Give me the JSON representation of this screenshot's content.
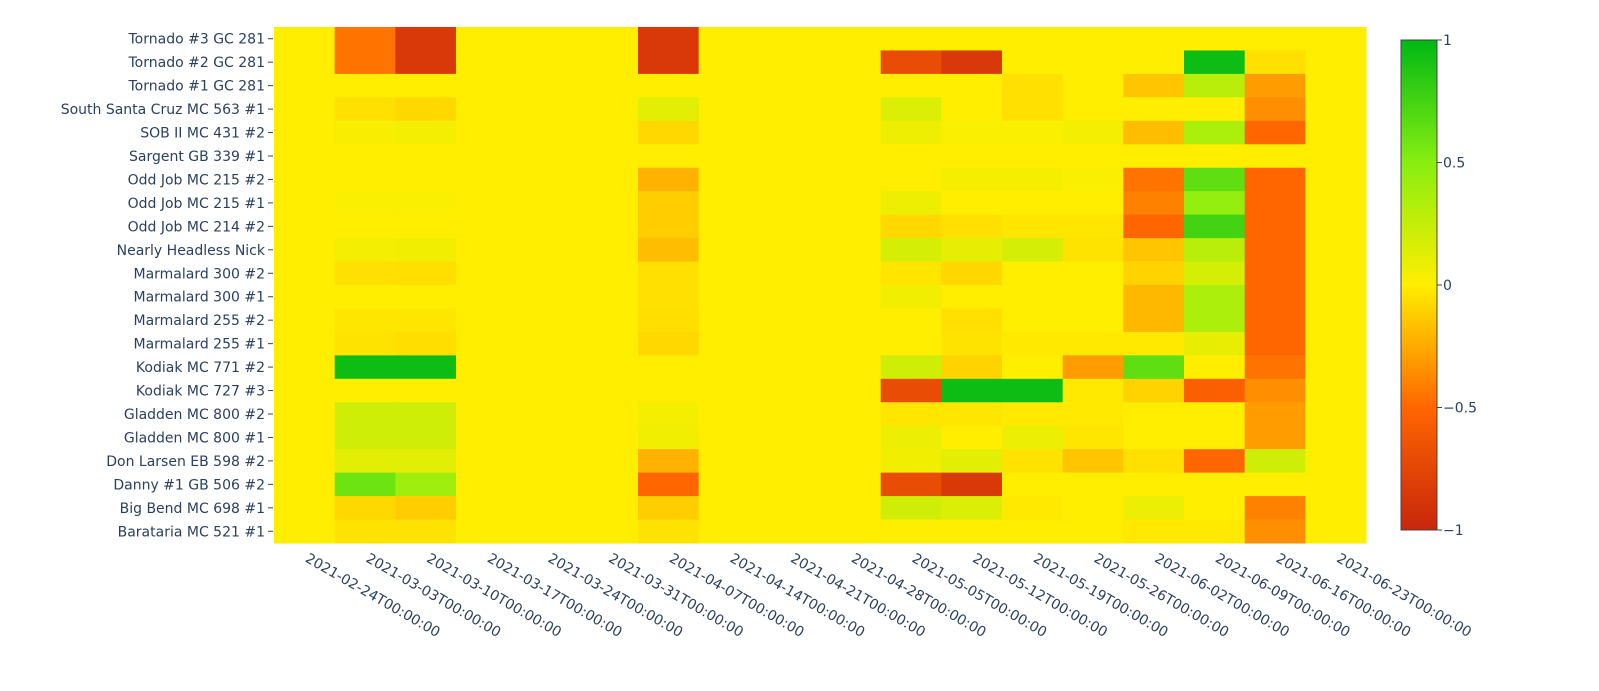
{
  "chart_data": {
    "type": "heatmap",
    "title": "",
    "xlabel": "",
    "ylabel": "",
    "x": [
      "2021-02-24T00:00:00",
      "2021-03-03T00:00:00",
      "2021-03-10T00:00:00",
      "2021-03-17T00:00:00",
      "2021-03-24T00:00:00",
      "2021-03-31T00:00:00",
      "2021-04-07T00:00:00",
      "2021-04-14T00:00:00",
      "2021-04-21T00:00:00",
      "2021-04-28T00:00:00",
      "2021-05-05T00:00:00",
      "2021-05-12T00:00:00",
      "2021-05-19T00:00:00",
      "2021-05-26T00:00:00",
      "2021-06-02T00:00:00",
      "2021-06-09T00:00:00",
      "2021-06-16T00:00:00",
      "2021-06-23T00:00:00"
    ],
    "y": [
      "Tornado #3 GC 281",
      "Tornado #2 GC 281",
      "Tornado #1 GC 281",
      "South Santa Cruz MC 563 #1",
      "SOB II MC 431 #2",
      "Sargent GB 339 #1",
      "Odd Job MC 215 #2",
      "Odd Job MC 215 #1",
      "Odd Job MC 214 #2",
      "Nearly Headless Nick",
      "Marmalard 300 #2",
      "Marmalard 300 #1",
      "Marmalard 255 #2",
      "Marmalard 255 #1",
      "Kodiak MC 771 #2",
      "Kodiak MC 727 #3",
      "Gladden MC 800 #2",
      "Gladden MC 800 #1",
      "Don Larsen EB 598 #2",
      "Danny #1 GB 506 #2",
      "Big Bend MC 698 #1",
      "Barataria MC 521 #1"
    ],
    "z": [
      [
        0,
        -0.45,
        -0.85,
        0,
        0,
        0,
        -0.85,
        0,
        0,
        0,
        0,
        0,
        0,
        0,
        0,
        0,
        0,
        0
      ],
      [
        0,
        -0.45,
        -0.85,
        0,
        0,
        0,
        -0.85,
        0,
        0,
        0,
        -0.7,
        -0.85,
        0,
        0,
        0,
        0.95,
        -0.05,
        0
      ],
      [
        0,
        0,
        0,
        0,
        0,
        0,
        0,
        0,
        0,
        0,
        0,
        0,
        -0.05,
        0,
        -0.15,
        0.3,
        -0.3,
        0
      ],
      [
        0,
        -0.05,
        -0.08,
        0,
        0,
        0,
        0.12,
        0,
        0,
        0,
        0.15,
        0,
        -0.05,
        0,
        0,
        0,
        -0.35,
        0
      ],
      [
        0,
        0.03,
        0.05,
        0,
        0,
        0,
        -0.08,
        0,
        0,
        0,
        0.07,
        0.02,
        0.02,
        0.05,
        -0.18,
        0.35,
        -0.5,
        0
      ],
      [
        0,
        0,
        0,
        0,
        0,
        0,
        0,
        0,
        0,
        0,
        0,
        0,
        0,
        0,
        0,
        0,
        0,
        0
      ],
      [
        0,
        0,
        0,
        0,
        0,
        0,
        -0.22,
        0,
        0,
        0,
        0,
        0.04,
        0.04,
        0.02,
        -0.45,
        0.65,
        -0.5,
        0
      ],
      [
        0,
        0.02,
        0.02,
        0,
        0,
        0,
        -0.12,
        0,
        0,
        0,
        0.07,
        0,
        0,
        0,
        -0.4,
        0.45,
        -0.5,
        0
      ],
      [
        0,
        0,
        0,
        0,
        0,
        0,
        -0.12,
        0,
        0,
        0,
        -0.08,
        -0.05,
        -0.03,
        -0.03,
        -0.5,
        0.75,
        -0.5,
        0
      ],
      [
        0,
        0.05,
        0.06,
        0,
        0,
        0,
        -0.18,
        0,
        0,
        0,
        0.18,
        0.1,
        0.18,
        -0.04,
        -0.15,
        0.3,
        -0.5,
        0
      ],
      [
        0,
        -0.05,
        -0.06,
        0,
        0,
        0,
        -0.05,
        0,
        0,
        0,
        -0.03,
        -0.08,
        0,
        0,
        -0.1,
        0.18,
        -0.5,
        0
      ],
      [
        0,
        0,
        0,
        0,
        0,
        0,
        -0.05,
        0,
        0,
        0,
        0.06,
        0,
        0,
        0,
        -0.2,
        0.35,
        -0.5,
        0
      ],
      [
        0,
        -0.03,
        -0.03,
        0,
        0,
        0,
        -0.06,
        0,
        0,
        0,
        0,
        -0.05,
        0,
        0,
        -0.2,
        0.35,
        -0.5,
        0
      ],
      [
        0,
        -0.04,
        -0.06,
        0,
        0,
        0,
        -0.08,
        0,
        0,
        0,
        0,
        -0.04,
        -0.02,
        -0.02,
        -0.02,
        0.1,
        -0.5,
        0
      ],
      [
        0,
        0.95,
        0.95,
        0,
        0,
        0,
        0,
        0,
        0,
        0,
        0.2,
        -0.1,
        0,
        -0.3,
        0.65,
        0,
        -0.45,
        0
      ],
      [
        0,
        0,
        0,
        0,
        0,
        0,
        0,
        0,
        0,
        0,
        -0.7,
        0.95,
        0.95,
        -0.02,
        -0.1,
        -0.55,
        -0.35,
        0
      ],
      [
        0,
        0.2,
        0.2,
        0,
        0,
        0,
        0.04,
        0,
        0,
        0,
        -0.03,
        -0.03,
        -0.02,
        -0.02,
        0,
        0,
        -0.3,
        0
      ],
      [
        0,
        0.2,
        0.2,
        0,
        0,
        0,
        0.06,
        0,
        0,
        0,
        0.08,
        0,
        0.08,
        -0.03,
        0,
        0,
        -0.3,
        0
      ],
      [
        0,
        0.12,
        0.12,
        0,
        0,
        0,
        -0.22,
        0,
        0,
        0,
        0.06,
        0.12,
        -0.04,
        -0.15,
        -0.05,
        -0.5,
        0.2,
        0
      ],
      [
        0,
        0.6,
        0.4,
        0,
        0,
        0,
        -0.5,
        0,
        0,
        0,
        -0.7,
        -0.85,
        0,
        0,
        0,
        0,
        0,
        0
      ],
      [
        0,
        -0.08,
        -0.12,
        0,
        0,
        0,
        -0.12,
        0,
        0,
        0,
        0.2,
        0.15,
        -0.02,
        0,
        0.08,
        0,
        -0.4,
        0
      ],
      [
        0,
        -0.04,
        -0.04,
        0,
        0,
        0,
        -0.04,
        0,
        0,
        0,
        0,
        0,
        0,
        0,
        -0.02,
        -0.02,
        -0.35,
        0
      ]
    ],
    "zlim": [
      -1,
      1
    ],
    "colorbar": {
      "ticks": [
        1,
        0.5,
        0,
        -0.5,
        -1
      ],
      "tick_labels": [
        "1",
        "0.5",
        "0",
        "−0.5",
        "−1"
      ],
      "colorscale": [
        [
          0,
          "#c8260c"
        ],
        [
          0.25,
          "#ff6600"
        ],
        [
          0.5,
          "#ffee00"
        ],
        [
          0.75,
          "#88ee11"
        ],
        [
          1,
          "#00b814"
        ]
      ]
    },
    "legend": "colorbar-right"
  }
}
